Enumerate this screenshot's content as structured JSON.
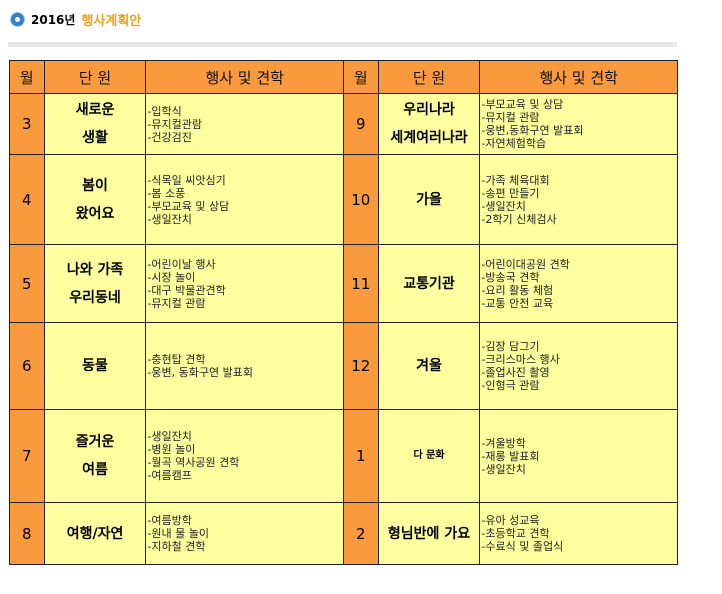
{
  "header": {
    "icon": "circle-bullet-icon",
    "year": "2016년",
    "title": "행사계획안"
  },
  "colors": {
    "header_bg": "#f99a3c",
    "cell_bg": "#ffffa0",
    "title": "#f0a020"
  },
  "columns": {
    "month": "월",
    "unit": "단 원",
    "events": "행사 및 견학"
  },
  "left": [
    {
      "month": "3",
      "unit": [
        "새로운",
        "생활"
      ],
      "events": [
        "-입학식",
        "-뮤지컬관람",
        "-건강검진"
      ]
    },
    {
      "month": "4",
      "unit": [
        "봄이",
        "왔어요"
      ],
      "events": [
        "-식목일 씨앗심기",
        "-봄 소풍",
        "-부모교육 및 상담",
        "-생일잔치"
      ]
    },
    {
      "month": "5",
      "unit": [
        "나와 가족",
        "우리동네"
      ],
      "events": [
        "-어린이날 행사",
        "-시장 놀이",
        "-대구 박물관견학",
        "-뮤지컬 관람"
      ]
    },
    {
      "month": "6",
      "unit": [
        "동물"
      ],
      "events": [
        "-충현탑 견학",
        "-웅변, 동화구연 발표회"
      ]
    },
    {
      "month": "7",
      "unit": [
        "즐거운",
        "여름"
      ],
      "events": [
        "-생일잔치",
        "-병원 놀이",
        "-월곡 역사공원 견학",
        "-여름캠프"
      ]
    },
    {
      "month": "8",
      "unit": [
        "여행/자연"
      ],
      "events": [
        "-여름방학",
        "-원내 물 놀이",
        "-지하철 견학"
      ]
    }
  ],
  "right": [
    {
      "month": "9",
      "unit": [
        "우리나라",
        "세계여러나라"
      ],
      "events": [
        "-부모교육 및 상담",
        "-뮤지컬 관람",
        "-웅변,동화구연 발표회",
        "-자연체험학습"
      ]
    },
    {
      "month": "10",
      "unit": [
        "가을"
      ],
      "events": [
        "-가족 체육대회",
        "-송편 만들기",
        "-생일잔치",
        "-2학기 신체검사"
      ]
    },
    {
      "month": "11",
      "unit": [
        "교통기관"
      ],
      "events": [
        "-어린이대공원 견학",
        "-방송국 견학",
        "-요리 활동 체험",
        "-교통 안전 교육"
      ]
    },
    {
      "month": "12",
      "unit": [
        "겨울"
      ],
      "events": [
        "-김장 담그기",
        "-크리스마스 행사",
        "-졸업사진 촬영",
        "-인형극 관람"
      ]
    },
    {
      "month": "1",
      "unit": [
        "다 문화"
      ],
      "events": [
        "-겨울방학",
        "-재롱 발표회",
        "-생일잔치"
      ]
    },
    {
      "month": "2",
      "unit": [
        "형님반에 가요"
      ],
      "events": [
        "-유아 성교육",
        "-초등학교 견학",
        "-수료식 및 졸업식"
      ]
    }
  ]
}
